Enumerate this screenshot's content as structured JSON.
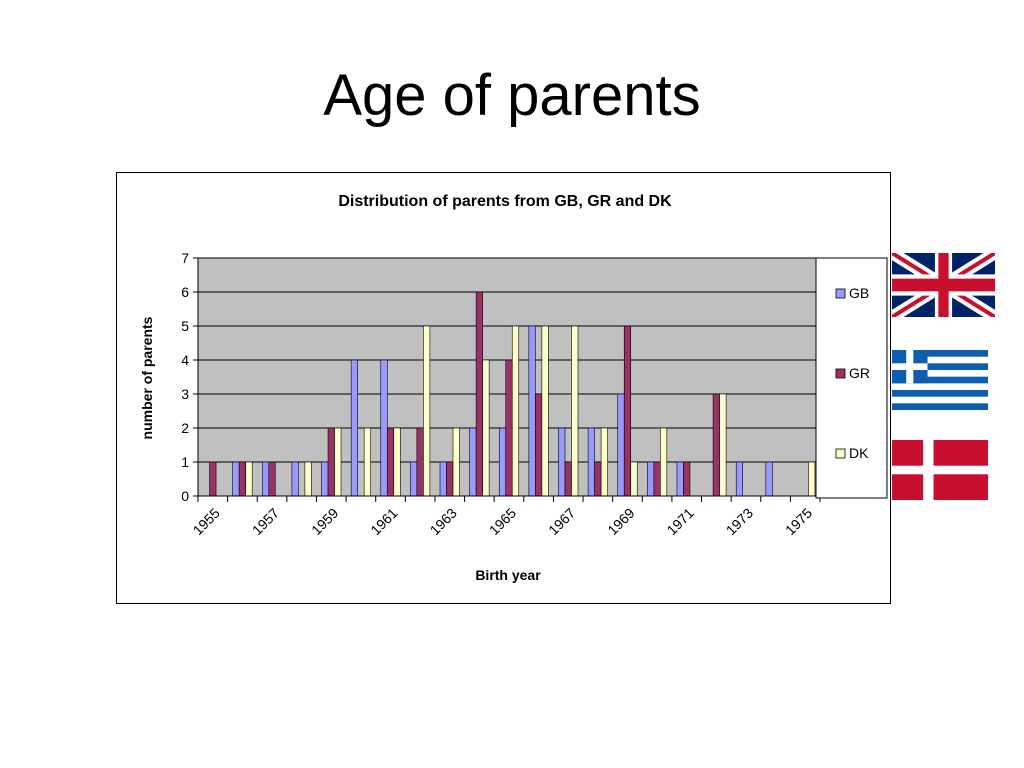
{
  "slide": {
    "title": "Age of parents"
  },
  "chart_data": {
    "type": "bar",
    "title": "Distribution of parents from GB, GR and DK",
    "xlabel": "Birth year",
    "ylabel": "number of parents",
    "ylim": [
      0,
      7
    ],
    "yticks": [
      "0",
      "1",
      "2",
      "3",
      "4",
      "5",
      "6",
      "7"
    ],
    "categories": [
      "1955",
      "1956",
      "1957",
      "1958",
      "1959",
      "1960",
      "1961",
      "1962",
      "1963",
      "1964",
      "1965",
      "1966",
      "1967",
      "1968",
      "1969",
      "1970",
      "1971",
      "1972",
      "1973",
      "1974",
      "1975"
    ],
    "tick_labels": [
      "1955",
      "1957",
      "1959",
      "1961",
      "1963",
      "1965",
      "1967",
      "1969",
      "1971",
      "1973",
      "1975"
    ],
    "series": [
      {
        "name": "GB",
        "color": "#9999ff",
        "values": [
          0,
          1,
          1,
          1,
          1,
          4,
          4,
          1,
          1,
          2,
          2,
          5,
          2,
          2,
          3,
          1,
          1,
          0,
          1,
          1,
          0
        ]
      },
      {
        "name": "GR",
        "color": "#993366",
        "values": [
          1,
          1,
          1,
          0,
          2,
          0,
          2,
          2,
          1,
          6,
          4,
          3,
          1,
          1,
          5,
          1,
          1,
          3,
          0,
          0,
          0
        ]
      },
      {
        "name": "DK",
        "color": "#ffffcc",
        "values": [
          0,
          1,
          0,
          1,
          2,
          2,
          2,
          5,
          2,
          4,
          5,
          5,
          5,
          2,
          1,
          2,
          0,
          3,
          0,
          0,
          1
        ]
      }
    ],
    "plot_background": "#c0c0c0",
    "grid": true,
    "legend": "right"
  },
  "flags": [
    {
      "name": "uk-flag-icon"
    },
    {
      "name": "greece-flag-icon"
    },
    {
      "name": "denmark-flag-icon"
    }
  ]
}
